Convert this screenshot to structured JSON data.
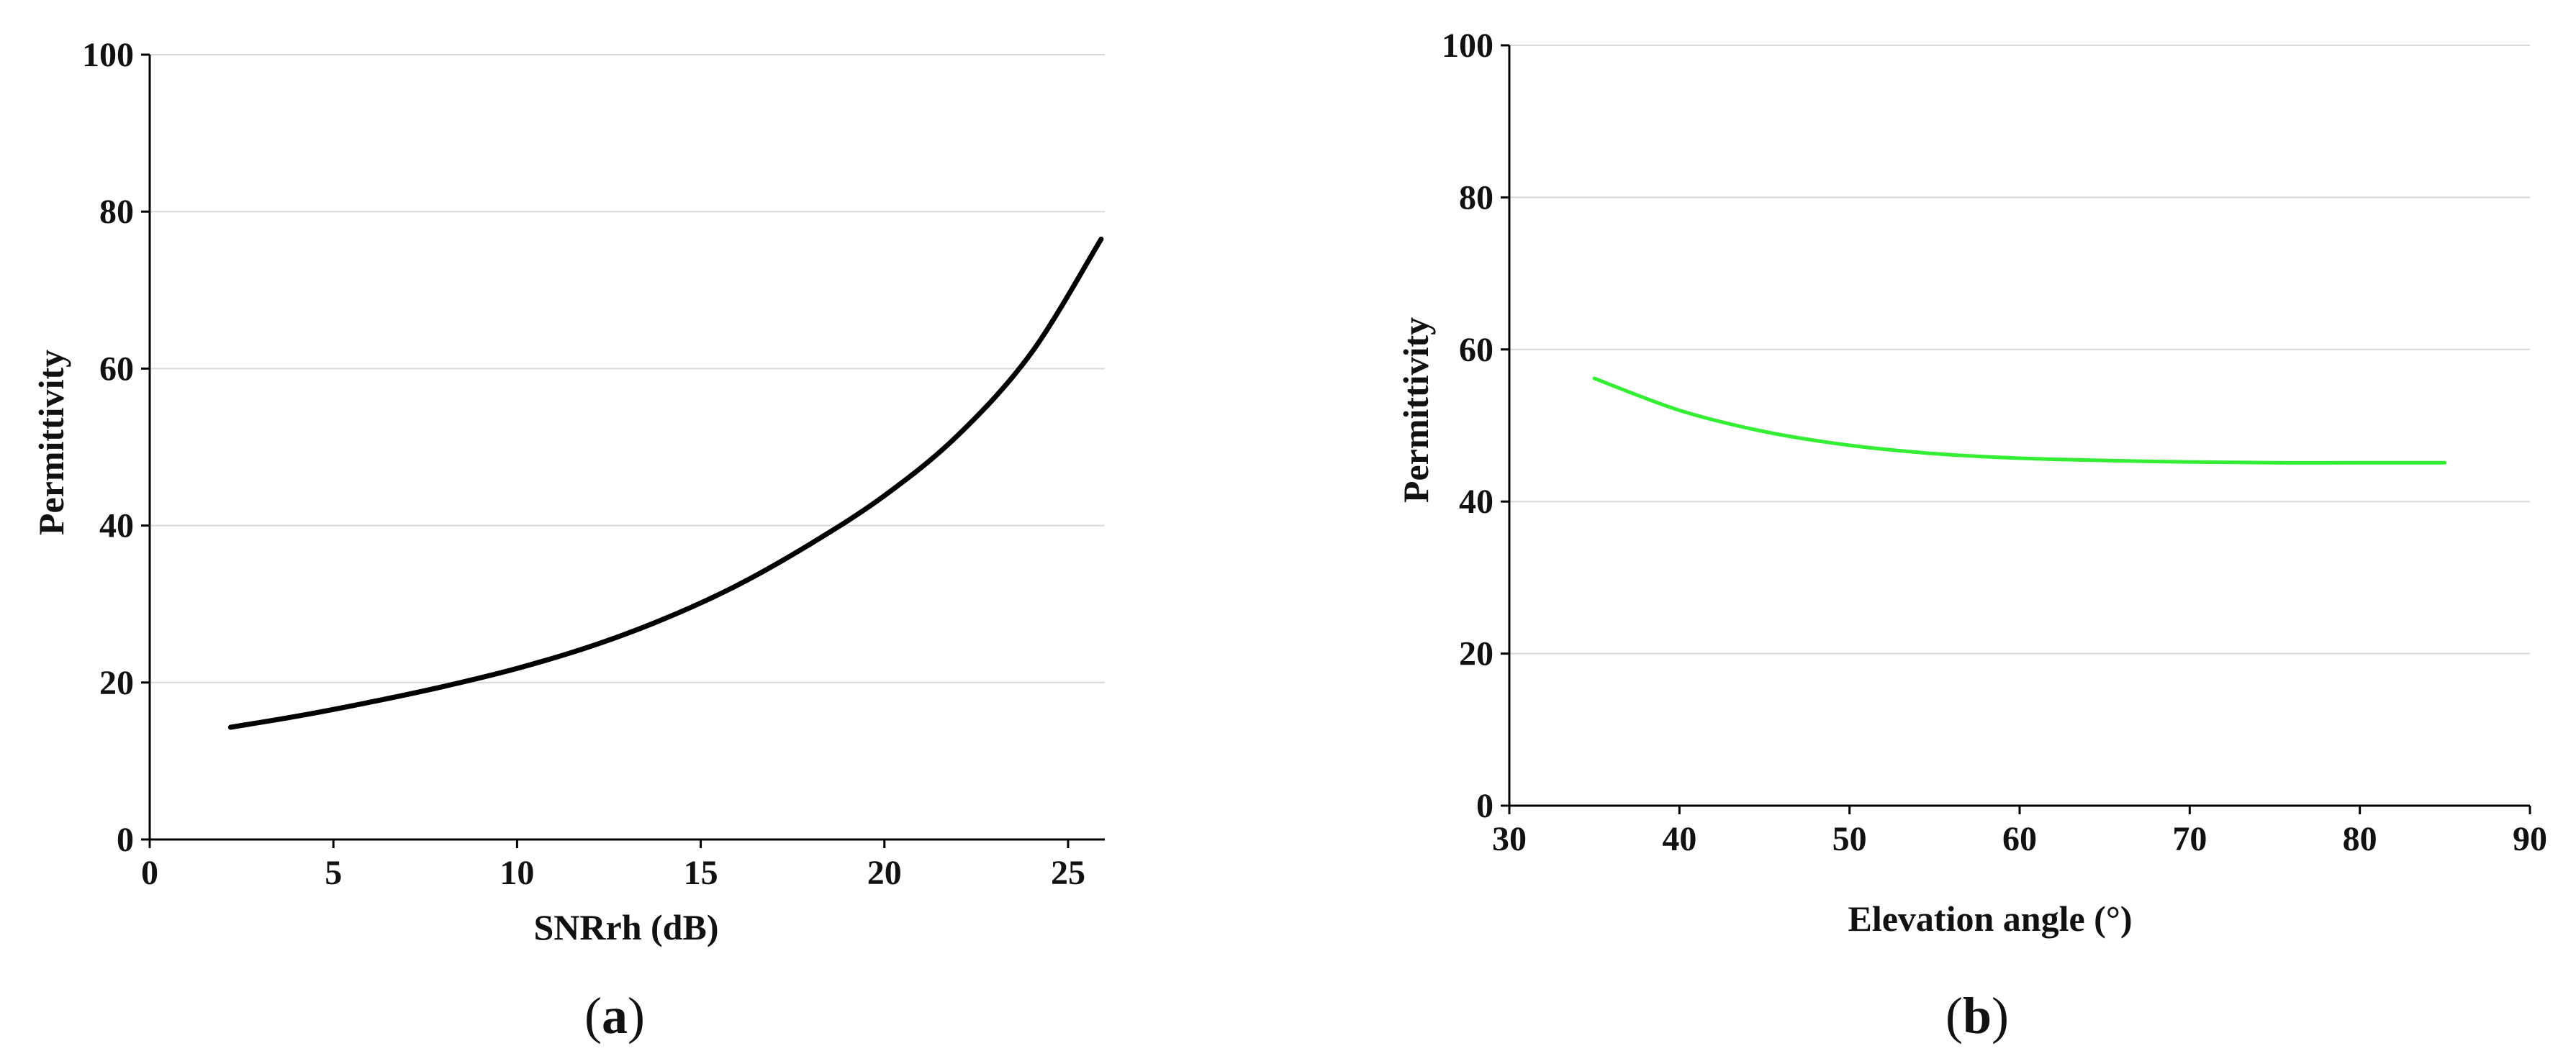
{
  "chart_data": [
    {
      "type": "line",
      "panel": "a",
      "xlabel": "SNRrh (dB)",
      "ylabel": "Permittivity",
      "xlim": [
        0,
        26
      ],
      "ylim": [
        0,
        100
      ],
      "xticks": [
        0,
        5,
        10,
        15,
        20,
        25
      ],
      "yticks": [
        0,
        20,
        40,
        60,
        80,
        100
      ],
      "grid": "horizontal",
      "colors": {
        "line": "#000000"
      },
      "series": [
        {
          "x": [
            2.2,
            4,
            6,
            8,
            10,
            12,
            14,
            16,
            18,
            20,
            22,
            24,
            25.9
          ],
          "y": [
            14.3,
            15.7,
            17.5,
            19.5,
            21.8,
            24.6,
            28.1,
            32.4,
            37.7,
            43.8,
            51.5,
            62.0,
            76.5
          ]
        }
      ]
    },
    {
      "type": "line",
      "panel": "b",
      "xlabel": "Elevation angle (°)",
      "ylabel": "Permittivity",
      "xlim": [
        30,
        90
      ],
      "ylim": [
        0,
        100
      ],
      "xticks": [
        30,
        40,
        50,
        60,
        70,
        80,
        90
      ],
      "yticks": [
        0,
        20,
        40,
        60,
        80,
        100
      ],
      "grid": "horizontal",
      "colors": {
        "line": "#33ee33"
      },
      "series": [
        {
          "x": [
            35,
            40,
            45,
            50,
            55,
            60,
            65,
            70,
            75,
            80,
            85
          ],
          "y": [
            56.2,
            52.0,
            49.2,
            47.4,
            46.3,
            45.7,
            45.4,
            45.2,
            45.1,
            45.1,
            45.1
          ]
        }
      ]
    }
  ]
}
